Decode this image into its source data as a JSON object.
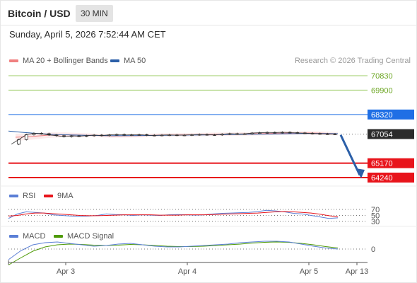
{
  "header": {
    "title": "Bitcoin / USD",
    "interval": "30 MIN",
    "datetime": "Sunday, April 5, 2026 7:52:44 AM CET"
  },
  "legend": {
    "main": [
      {
        "label": "MA 20 + Bollinger Bands",
        "color": "#f08080"
      },
      {
        "label": "MA 50",
        "color": "#2b5fa8"
      }
    ],
    "rsi": [
      {
        "label": "RSI",
        "color": "#5b7fd6"
      },
      {
        "label": "9MA",
        "color": "#e8141b"
      }
    ],
    "macd": [
      {
        "label": "MACD",
        "color": "#5b7fd6"
      },
      {
        "label": "MACD Signal",
        "color": "#4e9a06"
      }
    ]
  },
  "credit": "Research © 2026 Trading Central",
  "chart_data": {
    "type": "line",
    "title": "Bitcoin / USD",
    "x_ticks": [
      "Apr 3",
      "Apr 4",
      "Apr 5",
      "Apr 13"
    ],
    "price_levels": [
      {
        "label": "70830",
        "value": 70830,
        "style": "green-thin",
        "color": "#9ccc65"
      },
      {
        "label": "69900",
        "value": 69900,
        "style": "green-thin",
        "color": "#9ccc65"
      },
      {
        "label": "68320",
        "value": 68320,
        "style": "blue",
        "color": "#1f6fe5"
      },
      {
        "label": "67054",
        "value": 67054,
        "style": "current",
        "color": "#2b2b2b"
      },
      {
        "label": "65170",
        "value": 65170,
        "style": "red",
        "color": "#e8141b"
      },
      {
        "label": "64240",
        "value": 64240,
        "style": "red",
        "color": "#e8141b"
      }
    ],
    "series": [
      {
        "name": "MA 20 + Bollinger Bands",
        "values": [
          66850,
          66900,
          66980,
          67010,
          66990,
          66970,
          66930,
          66940,
          66960,
          66990,
          67000,
          67010,
          67030,
          67050,
          67060,
          67080,
          67100,
          67120,
          67130,
          67110,
          67080
        ]
      },
      {
        "name": "MA 50",
        "values": [
          67250,
          67150,
          67080,
          67020,
          66990,
          66970,
          66950,
          66950,
          66960,
          66970,
          66980,
          66990,
          67000,
          67020,
          67030,
          67050,
          67060,
          67080,
          67090,
          67090,
          67080
        ]
      }
    ],
    "close": [
      66400,
      66700,
      67020,
      67100,
      67080,
      67000,
      66950,
      66890,
      66940,
      66920,
      66950,
      66990,
      66960,
      67000,
      67030,
      66990,
      67010,
      67020,
      66980,
      66970,
      66990,
      67000,
      66980,
      66990,
      67010,
      67030,
      67010,
      67000,
      67050,
      67080,
      67060,
      67070,
      67120,
      67140,
      67160,
      67150,
      67170,
      67150,
      67130,
      67110,
      67090,
      67070,
      67060,
      67054
    ],
    "rsi": {
      "levels": [
        70,
        50,
        30
      ],
      "rsi": [
        40,
        55,
        62,
        60,
        58,
        52,
        50,
        48,
        47,
        48,
        50,
        55,
        53,
        52,
        50,
        52,
        51,
        50,
        52,
        53,
        52,
        51,
        52,
        55,
        57,
        58,
        59,
        60,
        63,
        67,
        65,
        62,
        57,
        55,
        50,
        45,
        40,
        42
      ],
      "ma9": [
        48,
        50,
        55,
        58,
        58,
        56,
        54,
        52,
        50,
        49,
        49,
        50,
        51,
        52,
        52,
        52,
        52,
        51,
        51,
        51,
        52,
        52,
        52,
        53,
        54,
        55,
        56,
        57,
        58,
        60,
        62,
        63,
        62,
        60,
        58,
        54,
        49,
        45
      ]
    },
    "macd": {
      "levels": [
        0
      ],
      "macd": [
        -30,
        -5,
        12,
        18,
        20,
        16,
        12,
        8,
        10,
        14,
        16,
        12,
        8,
        6,
        6,
        8,
        10,
        12,
        14,
        18,
        20,
        22,
        22,
        20,
        14,
        8,
        3,
        0
      ],
      "signal": [
        -45,
        -25,
        -6,
        6,
        12,
        14,
        13,
        11,
        10,
        11,
        13,
        12,
        10,
        8,
        7,
        7,
        8,
        10,
        12,
        14,
        17,
        19,
        20,
        19,
        16,
        12,
        7,
        3
      ]
    }
  }
}
